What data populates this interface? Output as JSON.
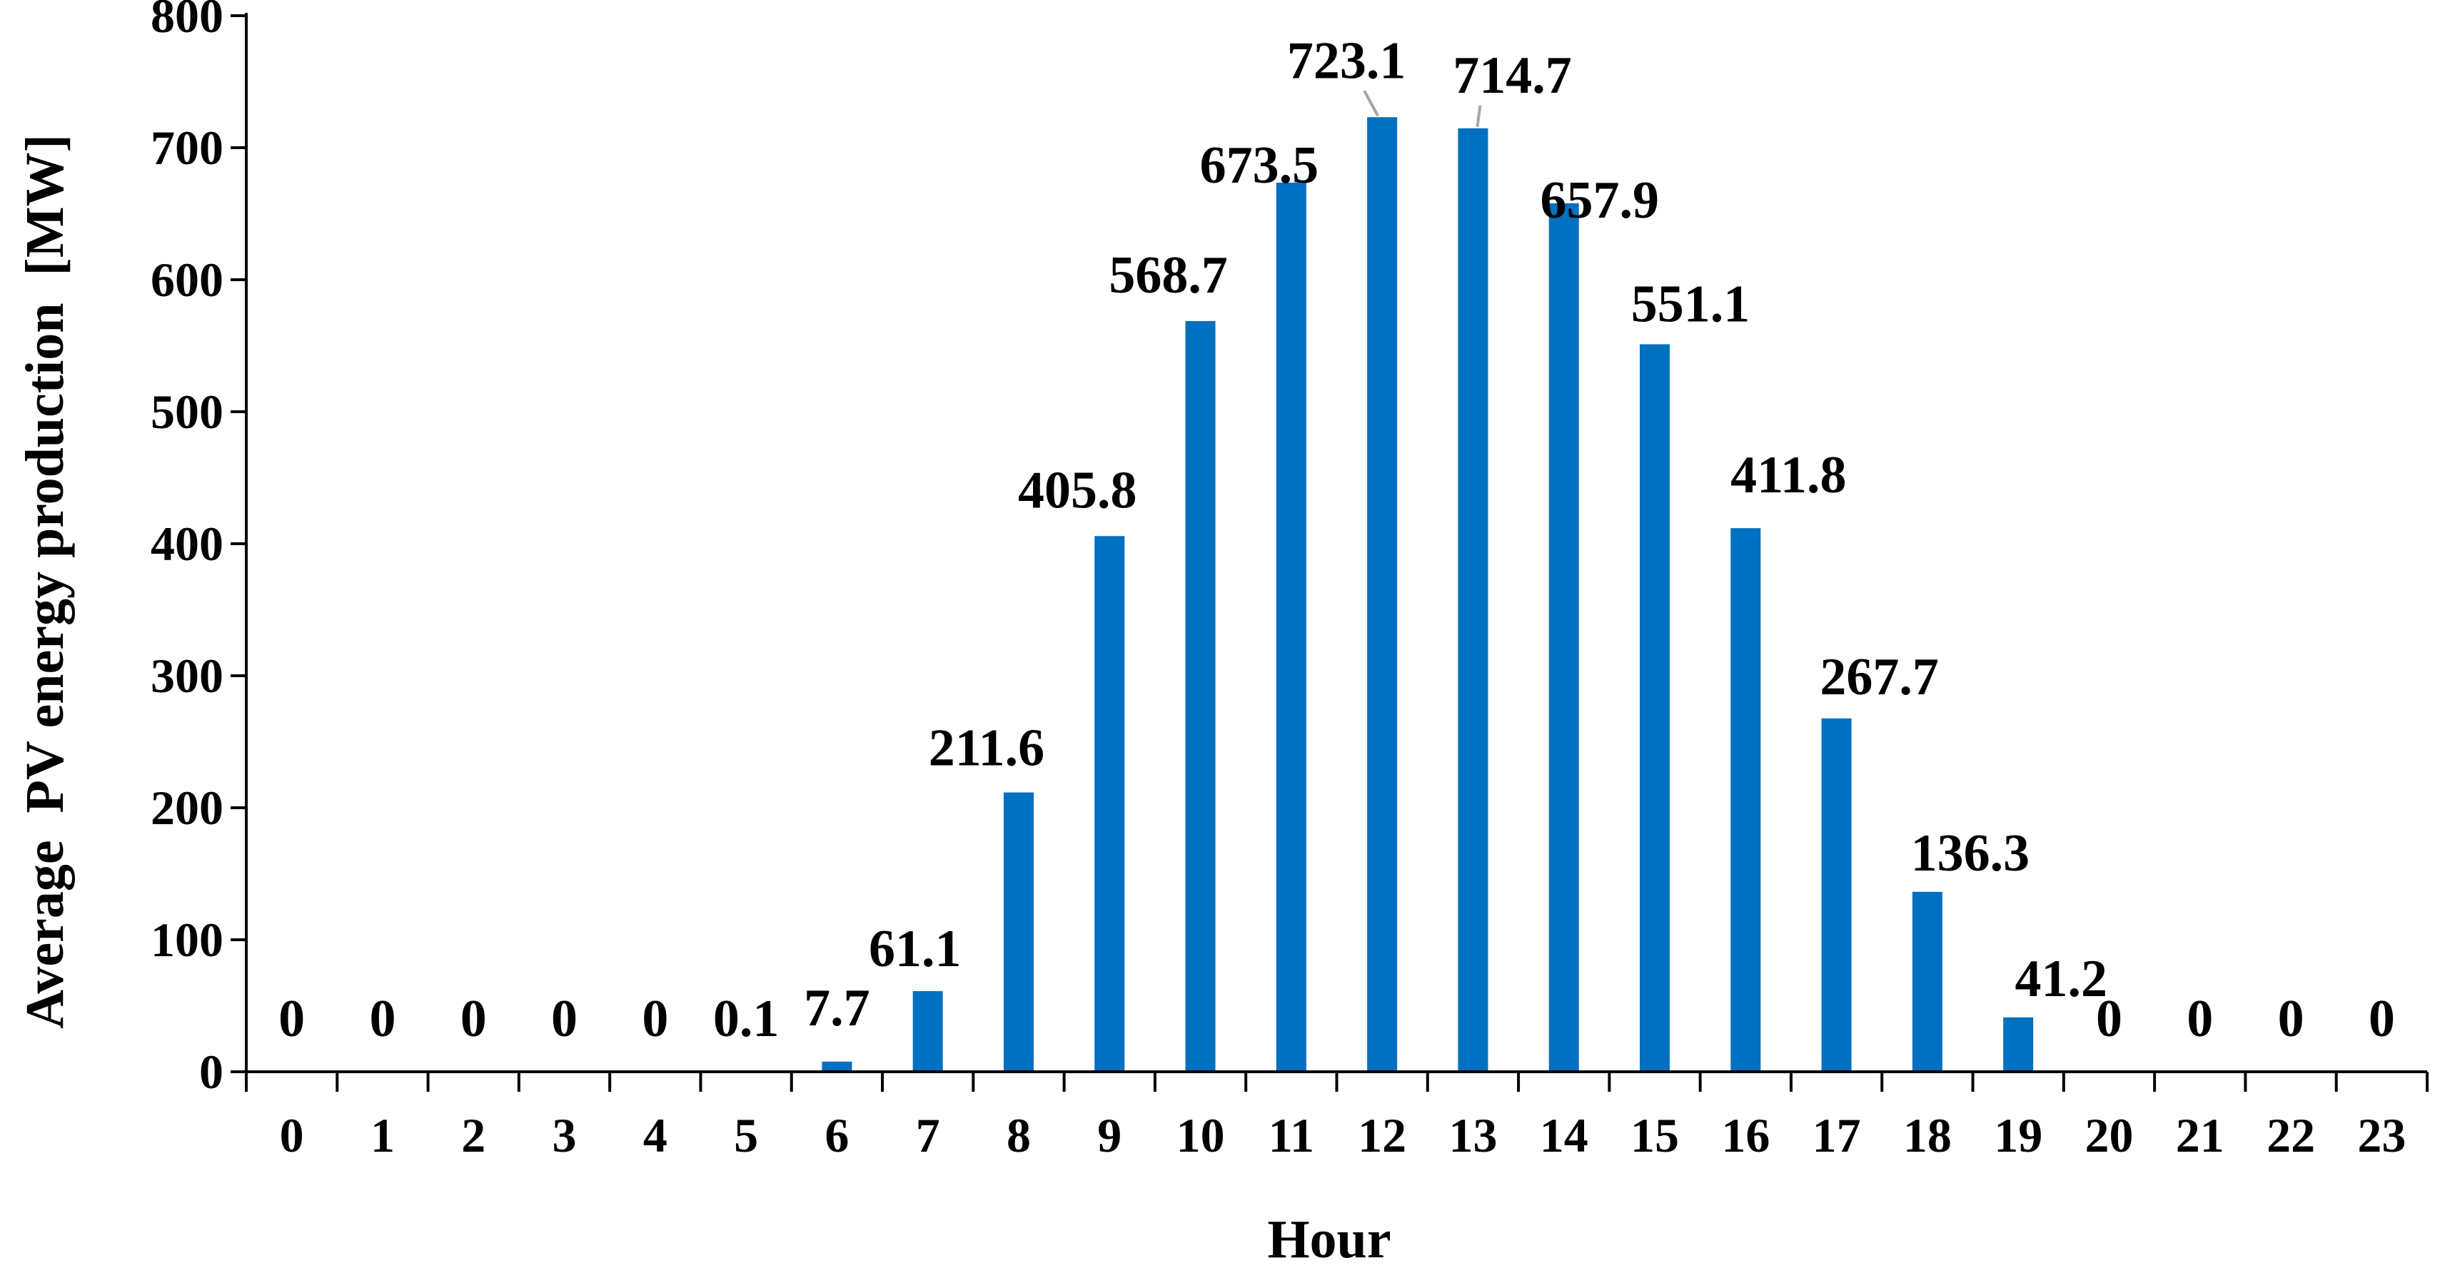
{
  "chart_data": {
    "type": "bar",
    "title": "",
    "xlabel": "Hour",
    "ylabel": "Average  PV energy production  [MW]",
    "categories": [
      "0",
      "1",
      "2",
      "3",
      "4",
      "5",
      "6",
      "7",
      "8",
      "9",
      "10",
      "11",
      "12",
      "13",
      "14",
      "15",
      "16",
      "17",
      "18",
      "19",
      "20",
      "21",
      "22",
      "23"
    ],
    "values": [
      0,
      0,
      0,
      0,
      0,
      0.1,
      7.7,
      61.1,
      211.6,
      405.8,
      568.7,
      673.5,
      723.1,
      714.7,
      657.9,
      551.1,
      411.8,
      267.7,
      136.3,
      41.2,
      0,
      0,
      0,
      0
    ],
    "data_labels": [
      "0",
      "0",
      "0",
      "0",
      "0",
      "0.1",
      "7.7",
      "61.1",
      "211.6",
      "405.8",
      "568.7",
      "673.5",
      "723.1",
      "714.7",
      "657.9",
      "551.1",
      "411.8",
      "267.7",
      "136.3",
      "41.2",
      "0",
      "0",
      "0",
      "0"
    ],
    "ylim": [
      0,
      800
    ],
    "yticks": [
      "0",
      "100",
      "200",
      "300",
      "400",
      "500",
      "600",
      "700",
      "800"
    ],
    "grid": false,
    "legend": "none",
    "bar_color": "#0070c0",
    "axis_color": "#000000",
    "leader_color": "#a6a6a6"
  }
}
